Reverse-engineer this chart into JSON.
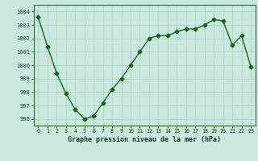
{
  "x": [
    0,
    1,
    2,
    3,
    4,
    5,
    6,
    7,
    8,
    9,
    10,
    11,
    12,
    13,
    14,
    15,
    16,
    17,
    18,
    19,
    20,
    21,
    22,
    23
  ],
  "y": [
    1003.6,
    1001.4,
    999.4,
    997.9,
    996.7,
    996.0,
    996.2,
    997.2,
    998.2,
    999.0,
    1000.0,
    1001.0,
    1002.0,
    1002.2,
    1002.2,
    1002.5,
    1002.7,
    1002.7,
    1003.0,
    1003.4,
    1003.3,
    1001.5,
    1002.2,
    999.9
  ],
  "line_color": "#1a6618",
  "marker": "D",
  "marker_size": 2.5,
  "bg_color": "#c8e8e0",
  "grid_color": "#aaccbb",
  "xlabel": "Graphe pression niveau de la mer (hPa)",
  "ylabel_ticks": [
    996,
    997,
    998,
    999,
    1000,
    1001,
    1002,
    1003,
    1004
  ],
  "xlim": [
    -0.5,
    23.5
  ],
  "ylim": [
    995.5,
    1004.5
  ],
  "xticks": [
    0,
    1,
    2,
    3,
    4,
    5,
    6,
    7,
    8,
    9,
    10,
    11,
    12,
    13,
    14,
    15,
    16,
    17,
    18,
    19,
    20,
    21,
    22,
    23
  ]
}
